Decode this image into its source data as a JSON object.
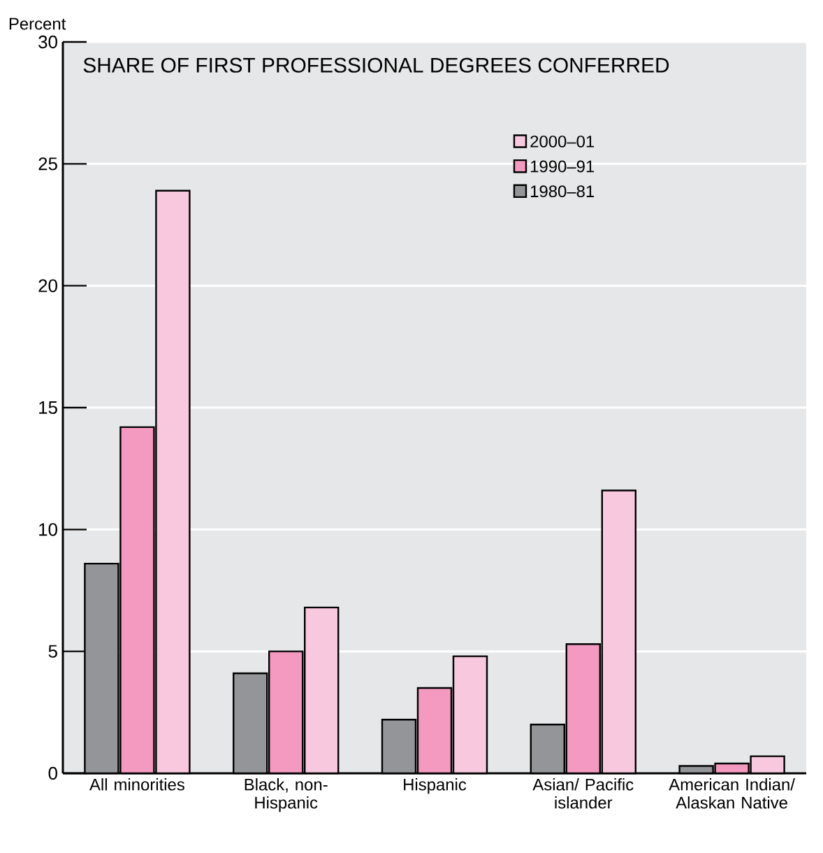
{
  "chart_data": {
    "type": "bar",
    "title": "SHARE OF FIRST PROFESSIONAL DEGREES CONFERRED",
    "ylabel": "Percent",
    "categories": [
      "All minorities",
      "Black, non-Hispanic",
      "Hispanic",
      "Asian/ Pacific islander",
      "American Indian/ Alaskan Native"
    ],
    "series": [
      {
        "name": "1980–81",
        "color": "#939598",
        "values": [
          8.6,
          4.1,
          2.2,
          2.0,
          0.3
        ]
      },
      {
        "name": "1990–91",
        "color": "#f49ac1",
        "values": [
          14.2,
          5.0,
          3.5,
          5.3,
          0.4
        ]
      },
      {
        "name": "2000–01",
        "color": "#f8c8de",
        "values": [
          23.9,
          6.8,
          4.8,
          11.6,
          0.7
        ]
      }
    ],
    "ylim": [
      0,
      30
    ],
    "yticks": [
      0,
      5,
      10,
      15,
      20,
      25,
      30
    ],
    "grid": "y",
    "legend": "top right"
  }
}
